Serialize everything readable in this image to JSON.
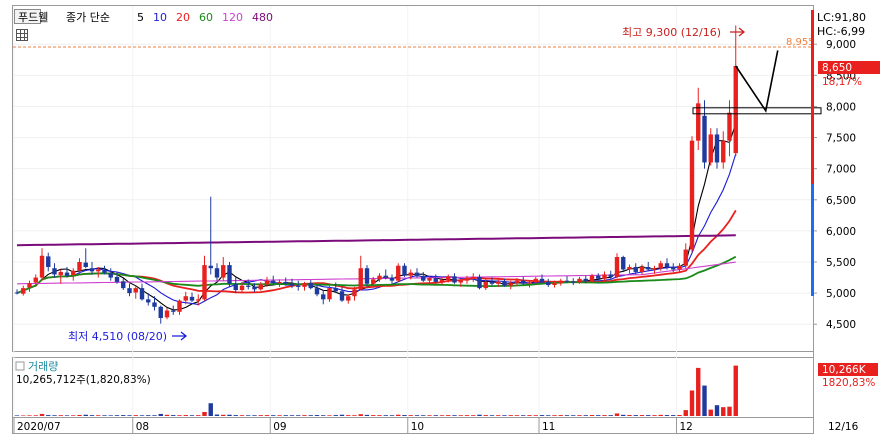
{
  "header": {
    "stock_name": "푸드웰",
    "ma_title": "종가 단순",
    "ma_periods": [
      {
        "label": "5",
        "color": "#000000"
      },
      {
        "label": "10",
        "color": "#1c1cd8"
      },
      {
        "label": "20",
        "color": "#e8201e"
      },
      {
        "label": "60",
        "color": "#1a8a1a"
      },
      {
        "label": "120",
        "color": "#d040d0"
      },
      {
        "label": "480",
        "color": "#7b0a7b"
      }
    ]
  },
  "annotations": {
    "high_label": "최고 9,300 (12/16)",
    "low_label": "최저 4,510 (08/20)",
    "target_label": "8,955",
    "lc_label": "LC:91,80",
    "hc_label": "HC:-6,99",
    "price_badge": "8,650",
    "change_label": "18,17%"
  },
  "volume_panel": {
    "title": "거래량",
    "summary": "10,265,712주(1,820,83%)",
    "badge": "10,266K",
    "change_label": "1820,83%"
  },
  "colors": {
    "up": "#e8201e",
    "down": "#1f3a9e",
    "dashed": "#f08040",
    "accent_blue": "#1c1cd8"
  },
  "chart_data": {
    "type": "candlestick",
    "y_ticks": [
      "9,000",
      "8,500",
      "8,000",
      "7,500",
      "7,000",
      "6,500",
      "6,000",
      "5,500",
      "5,000",
      "4,500"
    ],
    "y_tick_values": [
      9000,
      8500,
      8000,
      7500,
      7000,
      6500,
      6000,
      5500,
      5000,
      4500
    ],
    "ylim": [
      4150,
      9550
    ],
    "x_ticks": [
      "2020/07",
      "08",
      "09",
      "10",
      "11",
      "12"
    ],
    "x_tick_index": [
      0,
      19,
      41,
      63,
      84,
      106
    ],
    "x_end_label": "12/16",
    "reference_level": 8955,
    "ohlc": [
      [
        5010,
        5060,
        4980,
        5000
      ],
      [
        4990,
        5120,
        4960,
        5080
      ],
      [
        5090,
        5200,
        5020,
        5160
      ],
      [
        5170,
        5300,
        5100,
        5250
      ],
      [
        5250,
        5720,
        5200,
        5600
      ],
      [
        5590,
        5650,
        5350,
        5420
      ],
      [
        5400,
        5480,
        5250,
        5300
      ],
      [
        5290,
        5380,
        5150,
        5340
      ],
      [
        5330,
        5420,
        5250,
        5280
      ],
      [
        5290,
        5400,
        5200,
        5360
      ],
      [
        5360,
        5560,
        5300,
        5500
      ],
      [
        5490,
        5720,
        5400,
        5420
      ],
      [
        5400,
        5500,
        5300,
        5350
      ],
      [
        5350,
        5420,
        5250,
        5380
      ],
      [
        5380,
        5440,
        5300,
        5330
      ],
      [
        5320,
        5400,
        5200,
        5250
      ],
      [
        5260,
        5340,
        5150,
        5180
      ],
      [
        5190,
        5240,
        5050,
        5080
      ],
      [
        5080,
        5150,
        4950,
        5000
      ],
      [
        5010,
        5120,
        4910,
        5080
      ],
      [
        5080,
        5150,
        4880,
        4900
      ],
      [
        4900,
        5000,
        4800,
        4850
      ],
      [
        4850,
        4950,
        4720,
        4780
      ],
      [
        4780,
        4800,
        4510,
        4600
      ],
      [
        4610,
        4760,
        4580,
        4720
      ],
      [
        4720,
        4800,
        4650,
        4700
      ],
      [
        4700,
        4900,
        4650,
        4880
      ],
      [
        4880,
        5020,
        4820,
        4950
      ],
      [
        4940,
        5010,
        4860,
        4880
      ],
      [
        4880,
        4980,
        4800,
        4900
      ],
      [
        4900,
        5600,
        4880,
        5450
      ],
      [
        5440,
        6550,
        5300,
        5400
      ],
      [
        5400,
        5480,
        5200,
        5250
      ],
      [
        5250,
        5580,
        5200,
        5450
      ],
      [
        5450,
        5500,
        5100,
        5150
      ],
      [
        5150,
        5250,
        5000,
        5050
      ],
      [
        5050,
        5180,
        5000,
        5120
      ],
      [
        5120,
        5220,
        5060,
        5100
      ],
      [
        5100,
        5160,
        5020,
        5060
      ],
      [
        5060,
        5180,
        5040,
        5140
      ],
      [
        5140,
        5260,
        5100,
        5200
      ],
      [
        5200,
        5280,
        5140,
        5160
      ],
      [
        5160,
        5220,
        5100,
        5180
      ],
      [
        5180,
        5250,
        5120,
        5150
      ],
      [
        5150,
        5230,
        5080,
        5120
      ],
      [
        5120,
        5200,
        5040,
        5100
      ],
      [
        5100,
        5180,
        5040,
        5160
      ],
      [
        5160,
        5210,
        5060,
        5080
      ],
      [
        5080,
        5130,
        4950,
        4980
      ],
      [
        4980,
        5050,
        4820,
        4900
      ],
      [
        4900,
        5120,
        4860,
        5080
      ],
      [
        5080,
        5170,
        5000,
        5030
      ],
      [
        5030,
        5100,
        4860,
        4880
      ],
      [
        4880,
        4980,
        4830,
        4950
      ],
      [
        4950,
        5100,
        4880,
        5060
      ],
      [
        5060,
        5600,
        5040,
        5400
      ],
      [
        5400,
        5450,
        5100,
        5150
      ],
      [
        5150,
        5260,
        5100,
        5220
      ],
      [
        5220,
        5320,
        5180,
        5280
      ],
      [
        5280,
        5380,
        5220,
        5250
      ],
      [
        5250,
        5300,
        5150,
        5200
      ],
      [
        5200,
        5480,
        5180,
        5440
      ],
      [
        5440,
        5480,
        5260,
        5280
      ],
      [
        5280,
        5380,
        5220,
        5330
      ],
      [
        5330,
        5400,
        5250,
        5270
      ],
      [
        5270,
        5340,
        5180,
        5200
      ],
      [
        5200,
        5280,
        5150,
        5240
      ],
      [
        5240,
        5300,
        5160,
        5180
      ],
      [
        5180,
        5260,
        5140,
        5210
      ],
      [
        5210,
        5300,
        5170,
        5270
      ],
      [
        5270,
        5320,
        5150,
        5170
      ],
      [
        5170,
        5230,
        5100,
        5200
      ],
      [
        5200,
        5280,
        5150,
        5240
      ],
      [
        5240,
        5320,
        5180,
        5260
      ],
      [
        5260,
        5300,
        5060,
        5080
      ],
      [
        5080,
        5220,
        5050,
        5180
      ],
      [
        5180,
        5250,
        5120,
        5150
      ],
      [
        5150,
        5220,
        5100,
        5180
      ],
      [
        5180,
        5230,
        5100,
        5120
      ],
      [
        5120,
        5200,
        5060,
        5160
      ],
      [
        5160,
        5240,
        5120,
        5200
      ],
      [
        5200,
        5260,
        5130,
        5150
      ],
      [
        5150,
        5210,
        5090,
        5170
      ],
      [
        5170,
        5260,
        5140,
        5230
      ],
      [
        5230,
        5300,
        5160,
        5180
      ],
      [
        5180,
        5230,
        5100,
        5130
      ],
      [
        5130,
        5200,
        5090,
        5160
      ],
      [
        5160,
        5230,
        5120,
        5200
      ],
      [
        5200,
        5270,
        5160,
        5190
      ],
      [
        5190,
        5240,
        5130,
        5170
      ],
      [
        5170,
        5260,
        5150,
        5230
      ],
      [
        5230,
        5280,
        5160,
        5190
      ],
      [
        5190,
        5310,
        5170,
        5280
      ],
      [
        5280,
        5320,
        5200,
        5230
      ],
      [
        5230,
        5350,
        5200,
        5300
      ],
      [
        5300,
        5360,
        5220,
        5260
      ],
      [
        5260,
        5640,
        5240,
        5580
      ],
      [
        5580,
        5600,
        5350,
        5380
      ],
      [
        5380,
        5460,
        5320,
        5420
      ],
      [
        5420,
        5480,
        5300,
        5340
      ],
      [
        5340,
        5460,
        5300,
        5420
      ],
      [
        5420,
        5500,
        5350,
        5380
      ],
      [
        5380,
        5440,
        5310,
        5400
      ],
      [
        5400,
        5520,
        5360,
        5480
      ],
      [
        5480,
        5560,
        5380,
        5420
      ],
      [
        5420,
        5480,
        5340,
        5380
      ],
      [
        5380,
        5480,
        5340,
        5440
      ],
      [
        5440,
        5800,
        5400,
        5700
      ],
      [
        5700,
        7520,
        5650,
        7450
      ],
      [
        7450,
        8300,
        7300,
        8050
      ],
      [
        7850,
        8100,
        7000,
        7100
      ],
      [
        7100,
        7650,
        7050,
        7550
      ],
      [
        7550,
        7650,
        7000,
        7100
      ],
      [
        7100,
        7600,
        7000,
        7450
      ],
      [
        7450,
        8100,
        7200,
        7900
      ],
      [
        7250,
        9300,
        7200,
        8650
      ]
    ],
    "volume": [
      120,
      110,
      130,
      140,
      420,
      180,
      150,
      160,
      130,
      140,
      200,
      260,
      170,
      150,
      140,
      130,
      160,
      180,
      150,
      170,
      140,
      160,
      150,
      420,
      240,
      180,
      160,
      190,
      150,
      170,
      820,
      2600,
      300,
      240,
      260,
      180,
      160,
      140,
      150,
      170,
      180,
      160,
      150,
      160,
      150,
      150,
      170,
      160,
      190,
      150,
      140,
      180,
      260,
      170,
      160,
      360,
      230,
      180,
      170,
      160,
      150,
      260,
      190,
      170,
      160,
      150,
      150,
      160,
      150,
      170,
      160,
      150,
      170,
      160,
      260,
      180,
      150,
      160,
      150,
      170,
      160,
      150,
      170,
      160,
      180,
      150,
      160,
      180,
      160,
      150,
      170,
      160,
      190,
      170,
      180,
      170,
      520,
      240,
      200,
      180,
      190,
      180,
      170,
      230,
      190,
      180,
      200,
      1200,
      5200,
      9800,
      6200,
      1300,
      2200,
      1800,
      1900,
      10266
    ],
    "volume_ylim": [
      0,
      11000
    ]
  }
}
